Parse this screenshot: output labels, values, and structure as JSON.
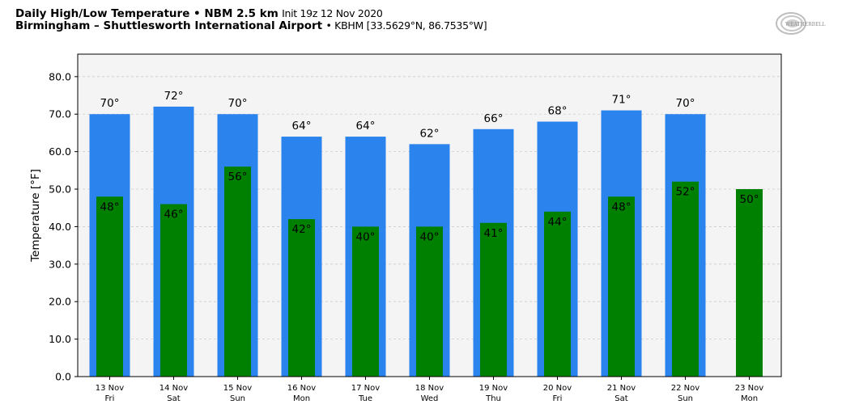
{
  "header": {
    "title_bold": "Daily High/Low Temperature • NBM 2.5 km",
    "title_init": "Init 19z 12 Nov 2020",
    "location_bold": "Birmingham – Shuttlesworth International Airport",
    "location_rest": "• KBHM [33.5629°N, 86.7535°W]",
    "logo_text": "WeatherBELL"
  },
  "colors": {
    "high": "#2b83ee",
    "low": "#008000",
    "plot_bg": "#f4f4f4",
    "grid": "#cccccc"
  },
  "chart_data": {
    "type": "bar",
    "title": "Daily High/Low Temperature • NBM 2.5 km",
    "xlabel": "",
    "ylabel": "Temperature [°F]",
    "ylim": [
      0,
      86
    ],
    "yticks": [
      0,
      10,
      20,
      30,
      40,
      50,
      60,
      70,
      80
    ],
    "ytick_labels": [
      "0.0",
      "10.0",
      "20.0",
      "30.0",
      "40.0",
      "50.0",
      "60.0",
      "70.0",
      "80.0"
    ],
    "grid": true,
    "categories": [
      "13 Nov",
      "14 Nov",
      "15 Nov",
      "16 Nov",
      "17 Nov",
      "18 Nov",
      "19 Nov",
      "20 Nov",
      "21 Nov",
      "22 Nov",
      "23 Nov"
    ],
    "weekdays": [
      "Fri",
      "Sat",
      "Sun",
      "Mon",
      "Tue",
      "Wed",
      "Thu",
      "Fri",
      "Sat",
      "Sun",
      "Mon"
    ],
    "series": [
      {
        "name": "High",
        "values": [
          70,
          72,
          70,
          64,
          64,
          62,
          66,
          68,
          71,
          70,
          null
        ],
        "labels": [
          "70°",
          "72°",
          "70°",
          "64°",
          "64°",
          "62°",
          "66°",
          "68°",
          "71°",
          "70°",
          ""
        ]
      },
      {
        "name": "Low",
        "values": [
          48,
          46,
          56,
          42,
          40,
          40,
          41,
          44,
          48,
          52,
          50
        ],
        "labels": [
          "48°",
          "46°",
          "56°",
          "42°",
          "40°",
          "40°",
          "41°",
          "44°",
          "48°",
          "52°",
          "50°"
        ]
      }
    ]
  }
}
